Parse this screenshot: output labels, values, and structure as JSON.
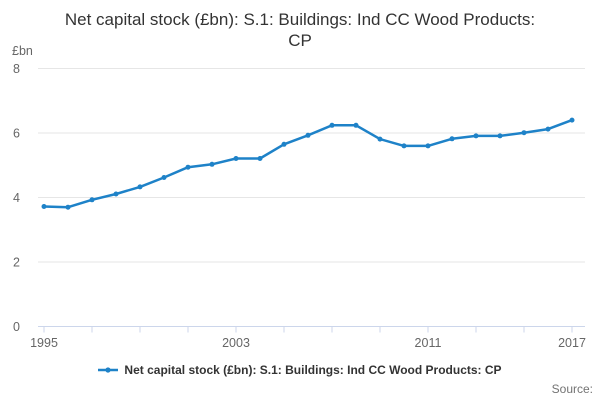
{
  "header": {
    "title": "Net capital stock (£bn): S.1: Buildings: Ind CC Wood Products: CP"
  },
  "y_axis": {
    "unit_label": "£bn"
  },
  "legend": {
    "label": "Net capital stock (£bn): S.1: Buildings: Ind CC Wood Products: CP"
  },
  "footer": {
    "source_label": "Source:"
  },
  "colors": {
    "line": "#1e82c8",
    "grid": "#e6e6e6",
    "axis": "#ccd6eb",
    "tick_label": "#666666",
    "title": "#333333",
    "source": "#737373"
  },
  "chart_data": {
    "type": "line",
    "title": "Net capital stock (£bn): S.1: Buildings: Ind CC Wood Products: CP",
    "xlabel": "",
    "ylabel": "£bn",
    "x": [
      1995,
      1996,
      1997,
      1998,
      1999,
      2000,
      2001,
      2002,
      2003,
      2004,
      2005,
      2006,
      2007,
      2008,
      2009,
      2010,
      2011,
      2012,
      2013,
      2014,
      2015,
      2016,
      2017
    ],
    "series": [
      {
        "name": "Net capital stock (£bn): S.1: Buildings: Ind CC Wood Products: CP",
        "values": [
          3.72,
          3.7,
          3.93,
          4.11,
          4.33,
          4.62,
          4.94,
          5.03,
          5.21,
          5.21,
          5.65,
          5.93,
          6.24,
          6.24,
          5.81,
          5.6,
          5.6,
          5.82,
          5.91,
          5.91,
          6.01,
          6.12,
          6.4
        ]
      }
    ],
    "ylim": [
      0,
      8
    ],
    "yticks": [
      0,
      2,
      4,
      6,
      8
    ],
    "xlim": [
      1995,
      2017
    ],
    "xtick_marks": [
      1995,
      1997,
      1999,
      2001,
      2003,
      2005,
      2007,
      2009,
      2011,
      2013,
      2015,
      2017
    ],
    "xtick_labels": [
      1995,
      2003,
      2011,
      2017
    ],
    "grid": "horizontal-only",
    "legend_position": "bottom",
    "marker": "circle"
  }
}
